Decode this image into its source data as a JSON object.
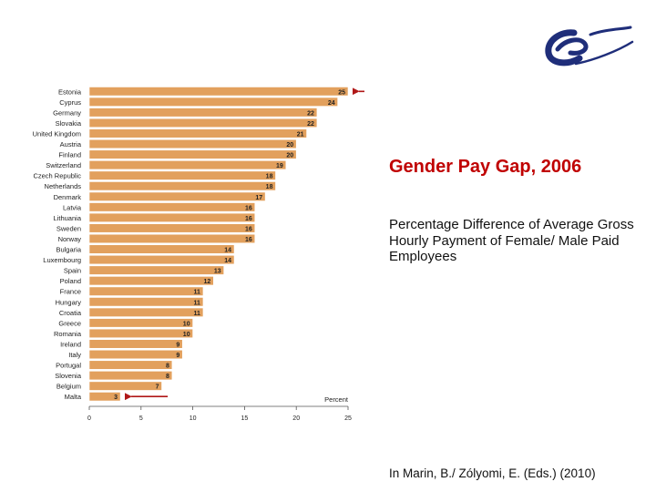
{
  "colors": {
    "bar": "#e2a05d",
    "bar_stroke": "#ffffff",
    "accent": "#c00000",
    "arrow": "#b01818",
    "text": "#222222",
    "logo": "#1f2e7a"
  },
  "icons": {
    "logo": "council-of-europe-logo-icon"
  },
  "slide": {
    "title": "Gender Pay Gap, 2006",
    "subtitle": "Percentage Difference of Average Gross Hourly Payment of Female/ Male Paid Employees",
    "source": "In Marin, B./ Zólyomi, E. (Eds.) (2010)"
  },
  "chart_data": {
    "type": "bar",
    "orientation": "horizontal",
    "categories": [
      "Estonia",
      "Cyprus",
      "Germany",
      "Slovakia",
      "United Kingdom",
      "Austria",
      "Finland",
      "Switzerland",
      "Czech Republic",
      "Netherlands",
      "Denmark",
      "Latvia",
      "Lithuania",
      "Sweden",
      "Norway",
      "Bulgaria",
      "Luxembourg",
      "Spain",
      "Poland",
      "France",
      "Hungary",
      "Croatia",
      "Greece",
      "Romania",
      "Ireland",
      "Italy",
      "Portugal",
      "Slovenia",
      "Belgium",
      "Malta"
    ],
    "values": [
      25,
      24,
      22,
      22,
      21,
      20,
      20,
      19,
      18,
      18,
      17,
      16,
      16,
      16,
      16,
      14,
      14,
      13,
      12,
      11,
      11,
      11,
      10,
      10,
      9,
      9,
      8,
      8,
      7,
      3
    ],
    "xlabel": "Percent",
    "xlim": [
      0,
      25
    ],
    "xticks": [
      0,
      5,
      10,
      15,
      20,
      25
    ],
    "grid": false,
    "highlighted": [
      "Estonia",
      "Malta"
    ]
  }
}
